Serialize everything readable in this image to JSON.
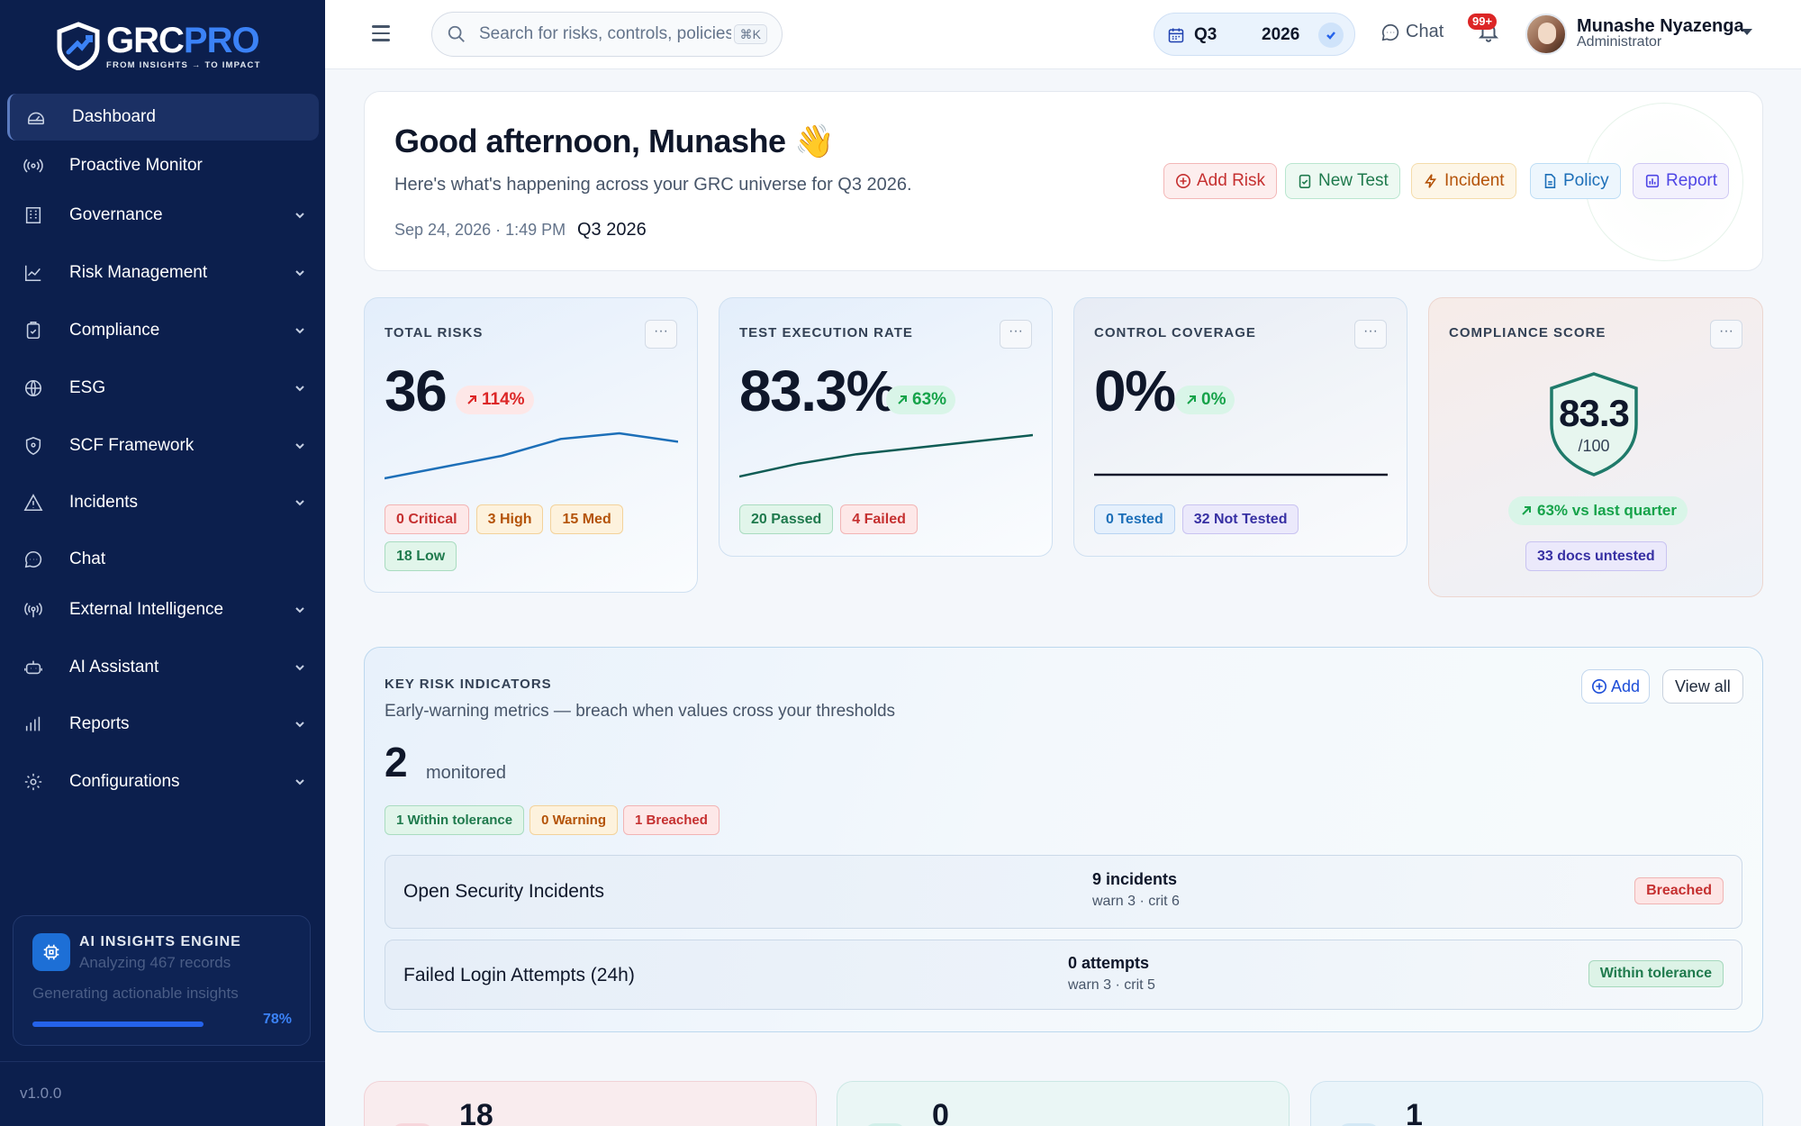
{
  "app": {
    "logo_grc": "GRC",
    "logo_pro": "PRO",
    "tagline": "FROM INSIGHTS → TO IMPACT",
    "version": "v1.0.0"
  },
  "sidebar": {
    "items": [
      {
        "label": "Dashboard",
        "icon": "dashboard-icon",
        "active": true,
        "expandable": false
      },
      {
        "label": "Proactive Monitor",
        "icon": "broadcast-icon",
        "active": false,
        "expandable": false
      },
      {
        "label": "Governance",
        "icon": "building-icon",
        "active": false,
        "expandable": true
      },
      {
        "label": "Risk Management",
        "icon": "trend-chart-icon",
        "active": false,
        "expandable": true
      },
      {
        "label": "Compliance",
        "icon": "clipboard-check-icon",
        "active": false,
        "expandable": true
      },
      {
        "label": "ESG",
        "icon": "globe-icon",
        "active": false,
        "expandable": true
      },
      {
        "label": "SCF Framework",
        "icon": "shield-icon",
        "active": false,
        "expandable": true
      },
      {
        "label": "Incidents",
        "icon": "warning-triangle-icon",
        "active": false,
        "expandable": true
      },
      {
        "label": "Chat",
        "icon": "chat-bubble-icon",
        "active": false,
        "expandable": false
      },
      {
        "label": "External Intelligence",
        "icon": "radio-waves-icon",
        "active": false,
        "expandable": true
      },
      {
        "label": "AI Assistant",
        "icon": "robot-icon",
        "active": false,
        "expandable": true
      },
      {
        "label": "Reports",
        "icon": "bar-chart-icon",
        "active": false,
        "expandable": true
      },
      {
        "label": "Configurations",
        "icon": "gear-icon",
        "active": false,
        "expandable": true
      }
    ],
    "ai_engine": {
      "title": "AI INSIGHTS ENGINE",
      "subtitle": "Analyzing 467 records",
      "status": "Generating actionable insights",
      "progress_percent": 78,
      "progress_label": "78%"
    }
  },
  "header": {
    "search_placeholder": "Search for risks, controls, policies…",
    "search_shortcut": "⌘K",
    "period_quarter": "Q3",
    "period_year": "2026",
    "chat_label": "Chat",
    "notifications_badge": "99+",
    "user_name": "Munashe Nyazenga",
    "user_role": "Administrator"
  },
  "greeting": {
    "title": "Good afternoon, Munashe 👋",
    "subtitle": "Here's what's happening across your GRC universe for Q3 2026.",
    "datetime": "Sep 24, 2026 · 1:49 PM",
    "period": "Q3 2026",
    "actions": [
      "Add Risk",
      "New Test",
      "Incident",
      "Policy",
      "Report"
    ]
  },
  "stats": {
    "total_risks": {
      "label": "TOTAL RISKS",
      "value": "36",
      "trend": "114%",
      "trend_direction": "up",
      "trend_color": "#dc2626",
      "sparkline": [
        4,
        8,
        12,
        18,
        20,
        17
      ],
      "chips": [
        "0 Critical",
        "3 High",
        "15 Med",
        "18 Low"
      ]
    },
    "test_execution": {
      "label": "TEST EXECUTION RATE",
      "value": "83.3%",
      "trend": "63%",
      "trend_direction": "up",
      "trend_color": "#16a34a",
      "sparkline": [
        2,
        6,
        9,
        11,
        13,
        15
      ],
      "chips": [
        "20 Passed",
        "4 Failed"
      ]
    },
    "control_coverage": {
      "label": "CONTROL COVERAGE",
      "value": "0%",
      "trend": "0%",
      "trend_direction": "up",
      "trend_color": "#16a34a",
      "sparkline": [
        0,
        0,
        0,
        0,
        0,
        0
      ],
      "chips": [
        "0 Tested",
        "32 Not Tested"
      ]
    },
    "compliance_score": {
      "label": "COMPLIANCE SCORE",
      "value": "83.3",
      "denominator": "/100",
      "vs_last": "63% vs last quarter",
      "untested": "33 docs untested"
    },
    "more_label": "···"
  },
  "kri": {
    "label": "KEY RISK INDICATORS",
    "subtitle": "Early-warning metrics — breach when values cross your thresholds",
    "count": "2",
    "count_label": "monitored",
    "chips": [
      "1 Within tolerance",
      "0 Warning",
      "1 Breached"
    ],
    "add_label": "Add",
    "view_all_label": "View all",
    "rows": [
      {
        "name": "Open Security Incidents",
        "value": "9 incidents",
        "thresholds": "warn 3 · crit 6",
        "status": "Breached"
      },
      {
        "name": "Failed Login Attempts (24h)",
        "value": "0 attempts",
        "thresholds": "warn 3 · crit 5",
        "status": "Within tolerance"
      }
    ]
  },
  "summary_cards": [
    "18",
    "0",
    "1"
  ]
}
